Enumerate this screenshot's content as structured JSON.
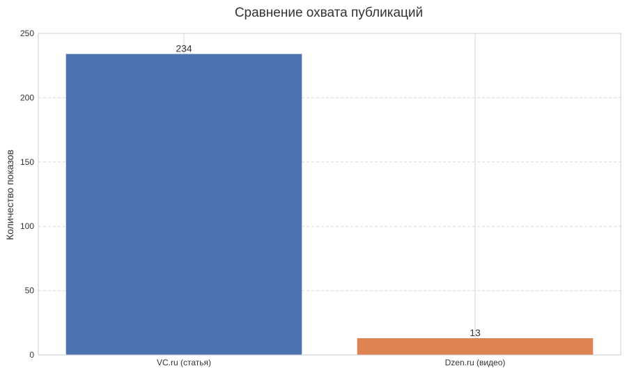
{
  "chart_data": {
    "type": "bar",
    "title": "Сравнение охвата публикаций",
    "xlabel": "",
    "ylabel": "Количество показов",
    "categories": [
      "VC.ru (статья)",
      "Dzen.ru (видео)"
    ],
    "values": [
      234,
      13
    ],
    "data_labels": [
      "234",
      "13"
    ],
    "colors": [
      "#4c72b0",
      "#dd8452"
    ],
    "ylim": [
      0,
      250
    ],
    "yticks": [
      "0",
      "50",
      "100",
      "150",
      "200",
      "250"
    ],
    "ytick_values": [
      0,
      50,
      100,
      150,
      200,
      250
    ],
    "grid": true
  }
}
